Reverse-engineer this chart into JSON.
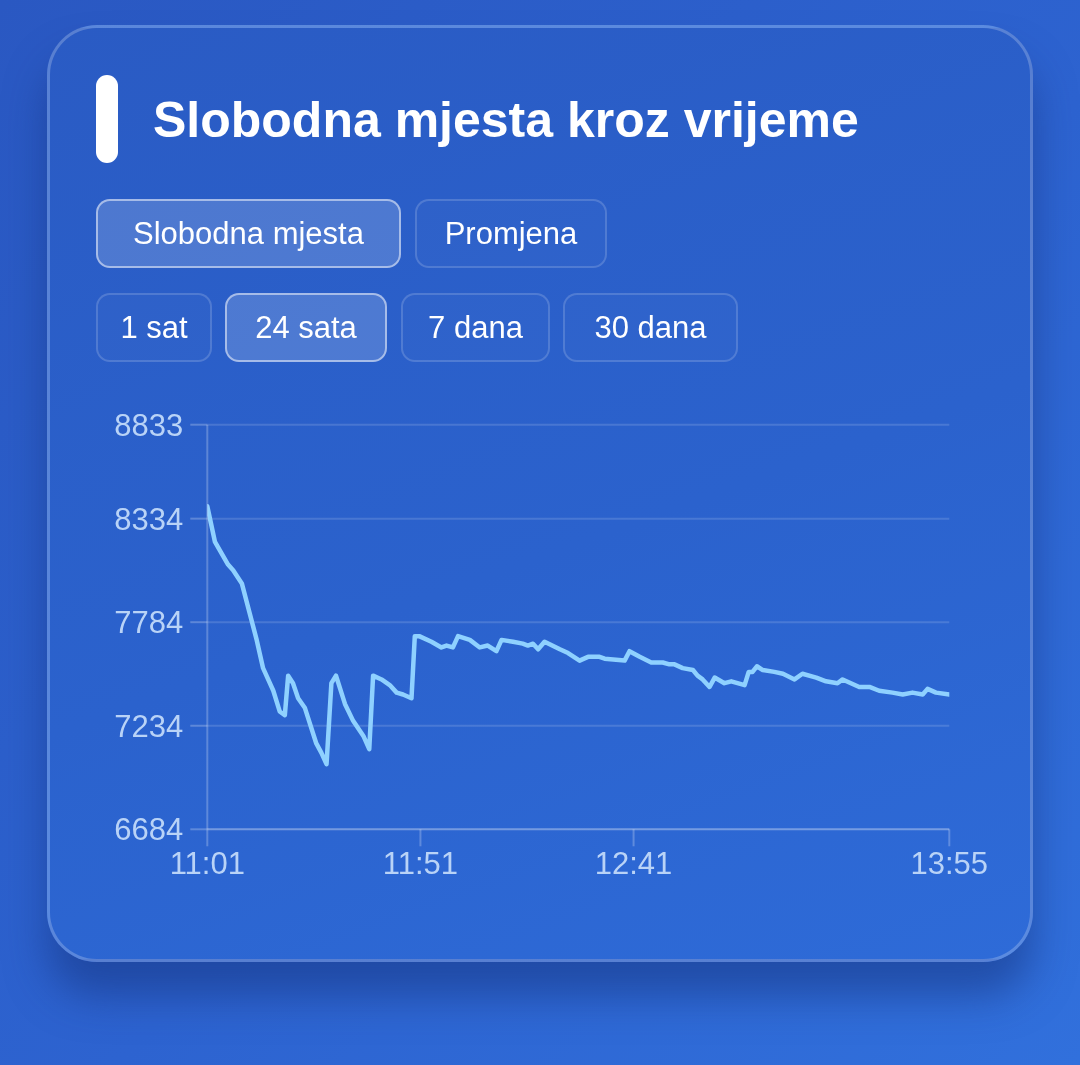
{
  "chart_data": {
    "type": "line",
    "title": "Slobodna mjesta kroz vrijeme",
    "annotations": [
      "Slobodna mjesta",
      "Promjena",
      "1 sat",
      "24 sata",
      "7 dana",
      "30 dana"
    ],
    "x": [
      11.017,
      11.047,
      11.098,
      11.118,
      11.152,
      11.21,
      11.235,
      11.275,
      11.3,
      11.32,
      11.333,
      11.352,
      11.372,
      11.398,
      11.443,
      11.463,
      11.483,
      11.502,
      11.52,
      11.555,
      11.587,
      11.627,
      11.65,
      11.665,
      11.698,
      11.73,
      11.757,
      11.782,
      11.815,
      11.828,
      11.845,
      11.893,
      11.932,
      11.952,
      11.977,
      11.997,
      12.043,
      12.082,
      12.113,
      12.147,
      12.167,
      12.212,
      12.25,
      12.27,
      12.29,
      12.31,
      12.335,
      12.395,
      12.427,
      12.472,
      12.505,
      12.55,
      12.57,
      12.648,
      12.667,
      12.707,
      12.752,
      12.797,
      12.823,
      12.843,
      12.875,
      12.915,
      12.933,
      12.953,
      12.98,
      13.0,
      13.038,
      13.065,
      13.117,
      13.133,
      13.148,
      13.165,
      13.188,
      13.233,
      13.267,
      13.312,
      13.343,
      13.397,
      13.435,
      13.48,
      13.5,
      13.565,
      13.605,
      13.643,
      13.695,
      13.735,
      13.773,
      13.813,
      13.832,
      13.865,
      13.917
    ],
    "values": [
      8400,
      8210,
      8090,
      8060,
      7990,
      7690,
      7540,
      7420,
      7310,
      7290,
      7500,
      7460,
      7380,
      7330,
      7140,
      7090,
      7030,
      7460,
      7500,
      7350,
      7260,
      7180,
      7110,
      7500,
      7480,
      7450,
      7410,
      7400,
      7380,
      7710,
      7710,
      7680,
      7650,
      7660,
      7650,
      7710,
      7690,
      7650,
      7660,
      7630,
      7690,
      7680,
      7670,
      7660,
      7670,
      7640,
      7680,
      7640,
      7620,
      7580,
      7600,
      7600,
      7590,
      7580,
      7630,
      7600,
      7570,
      7570,
      7560,
      7560,
      7540,
      7530,
      7500,
      7480,
      7440,
      7490,
      7460,
      7470,
      7450,
      7520,
      7520,
      7550,
      7530,
      7520,
      7510,
      7480,
      7510,
      7490,
      7470,
      7460,
      7480,
      7440,
      7440,
      7420,
      7410,
      7400,
      7410,
      7400,
      7430,
      7410,
      7400
    ],
    "color": "#8fd1ff",
    "xlim": [
      11.017,
      13.917
    ],
    "xticks": [
      {
        "value": 11.017,
        "label": "11:01"
      },
      {
        "value": 11.85,
        "label": "11:51"
      },
      {
        "value": 12.683,
        "label": "12:41"
      },
      {
        "value": 13.917,
        "label": "13:55"
      }
    ],
    "ylim": [
      6684,
      8833
    ],
    "yticks": [
      6684,
      7234,
      7784,
      8334,
      8833
    ],
    "grid": "y"
  }
}
